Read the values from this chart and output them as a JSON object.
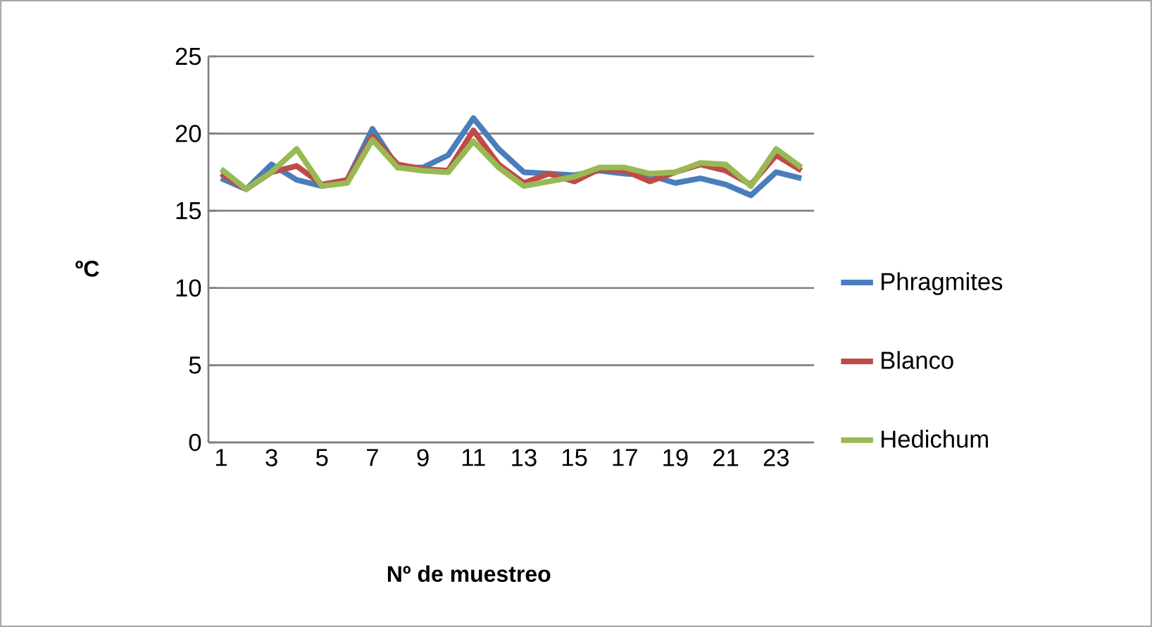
{
  "chart_data": {
    "type": "line",
    "xlabel": "Nº de muestreo",
    "ylabel": "ºC",
    "categories": [
      "1",
      null,
      "3",
      null,
      "5",
      null,
      "7",
      null,
      "9",
      null,
      "11",
      null,
      "13",
      null,
      "15",
      null,
      "17",
      null,
      "19",
      null,
      "21",
      null,
      "23",
      null
    ],
    "series": [
      {
        "name": "Phragmites",
        "color": "#4a7ebb",
        "values": [
          17.1,
          16.4,
          18,
          17,
          16.6,
          17,
          20.3,
          17.8,
          17.8,
          18.6,
          21,
          19,
          17.5,
          17.4,
          17.3,
          17.6,
          17.4,
          17.3,
          16.8,
          17.1,
          16.7,
          16,
          17.5,
          17.1
        ]
      },
      {
        "name": "Blanco",
        "color": "#be4b48",
        "values": [
          17.4,
          16.4,
          17.5,
          17.9,
          16.7,
          17,
          19.8,
          18,
          17.7,
          17.6,
          20.2,
          18,
          16.8,
          17.4,
          16.9,
          17.7,
          17.6,
          16.9,
          17.5,
          18,
          17.6,
          16.7,
          18.6,
          17.6
        ]
      },
      {
        "name": "Hedichum",
        "color": "#98b954",
        "values": [
          17.7,
          16.4,
          17.5,
          19,
          16.6,
          16.8,
          19.6,
          17.8,
          17.6,
          17.5,
          19.5,
          17.8,
          16.6,
          16.9,
          17.2,
          17.8,
          17.8,
          17.4,
          17.5,
          18.1,
          18,
          16.6,
          19,
          17.8
        ]
      }
    ],
    "ylim": [
      0,
      25
    ],
    "yticks": [
      0,
      5,
      10,
      15,
      20,
      25
    ],
    "grid": "y",
    "legend": "right",
    "marker": "none",
    "line_style": "solid"
  }
}
